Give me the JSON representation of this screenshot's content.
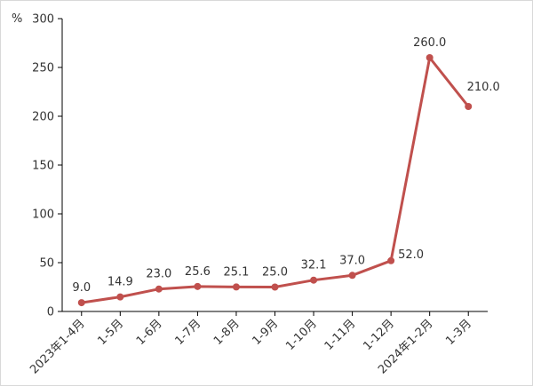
{
  "chart_data": {
    "type": "line",
    "title": "",
    "xlabel": "",
    "ylabel": "%",
    "ylim": [
      0,
      300
    ],
    "yticks": [
      0,
      50,
      100,
      150,
      200,
      250,
      300
    ],
    "grid": false,
    "legend": "none",
    "categories": [
      "2023年1-4月",
      "1-5月",
      "1-6月",
      "1-7月",
      "1-8月",
      "1-9月",
      "1-10月",
      "1-11月",
      "1-12月",
      "2024年1-2月",
      "1-3月"
    ],
    "series": [
      {
        "values": [
          9.0,
          14.9,
          23.0,
          25.6,
          25.1,
          25.0,
          32.1,
          37.0,
          52.0,
          260.0,
          210.0
        ],
        "labels": [
          "9.0",
          "14.9",
          "23.0",
          "25.6",
          "25.1",
          "25.0",
          "32.1",
          "37.0",
          "52.0",
          "260.0",
          "210.0"
        ],
        "color": "#c0504d"
      }
    ]
  }
}
